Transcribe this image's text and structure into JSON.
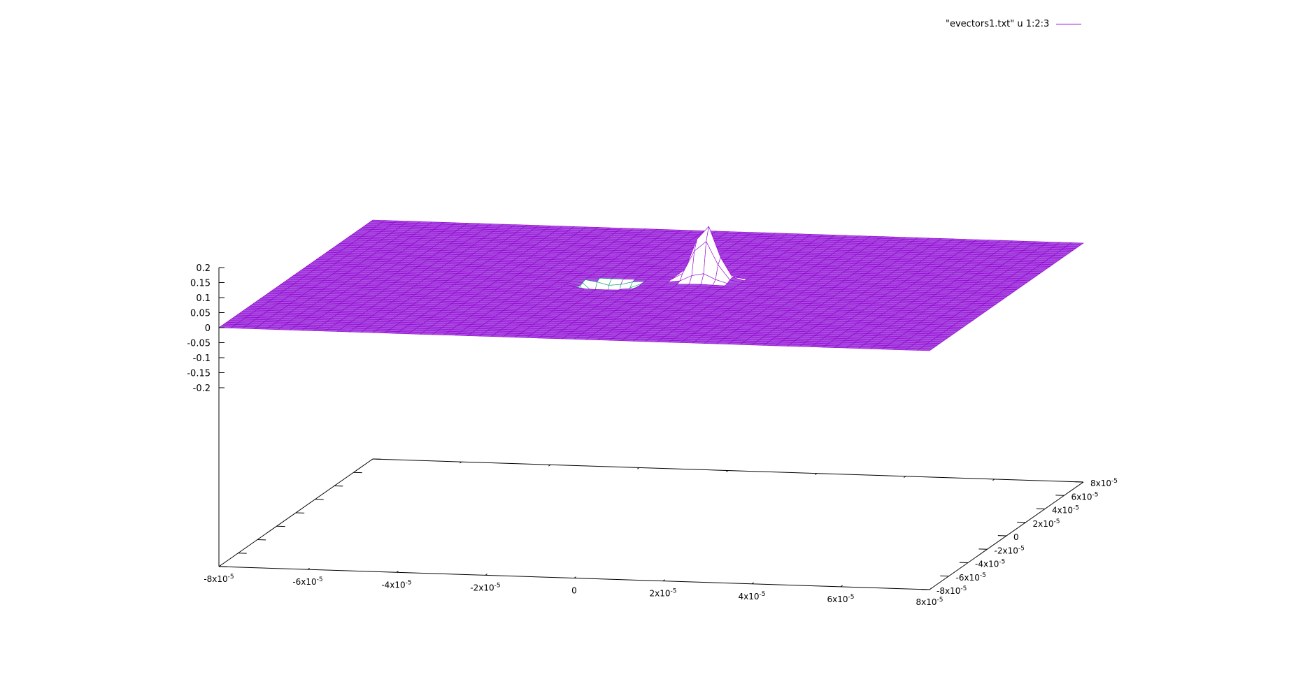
{
  "chart_data": {
    "type": "surface",
    "title": "",
    "legend": {
      "position": "top-right",
      "entries": [
        {
          "label": "\"evectors1.txt\" u 1:2:3",
          "color": "#9400d3"
        }
      ]
    },
    "series": [
      {
        "name": "\"evectors1.txt\" u 1:2:3",
        "color_top": "#9400d3",
        "color_bottom": "#009e73",
        "grid_points": 61,
        "features": [
          {
            "kind": "peak",
            "x": 1e-05,
            "y": 1e-05,
            "z": 0.19,
            "sigma": 2.5e-06
          },
          {
            "kind": "trough",
            "x": -1e-05,
            "y": 0,
            "z": -0.17,
            "sigma": 2.5e-06
          }
        ]
      }
    ],
    "x_axis": {
      "range": [
        -8e-05,
        8e-05
      ],
      "tick_labels": [
        "-8x10-5",
        "-6x10-5",
        "-4x10-5",
        "-2x10-5",
        "0",
        "2x10-5",
        "4x10-5",
        "6x10-5",
        "8x10-5"
      ]
    },
    "y_axis": {
      "range": [
        -8e-05,
        8e-05
      ],
      "tick_labels": [
        "-8x10-5",
        "-6x10-5",
        "-4x10-5",
        "-2x10-5",
        "0",
        "2x10-5",
        "4x10-5",
        "6x10-5",
        "8x10-5"
      ]
    },
    "z_axis": {
      "range": [
        -0.2,
        0.2
      ],
      "tick_labels": [
        "-0.2",
        "-0.15",
        "-0.1",
        "-0.05",
        "0",
        "0.05",
        "0.1",
        "0.15",
        "0.2"
      ]
    },
    "grid": false
  }
}
